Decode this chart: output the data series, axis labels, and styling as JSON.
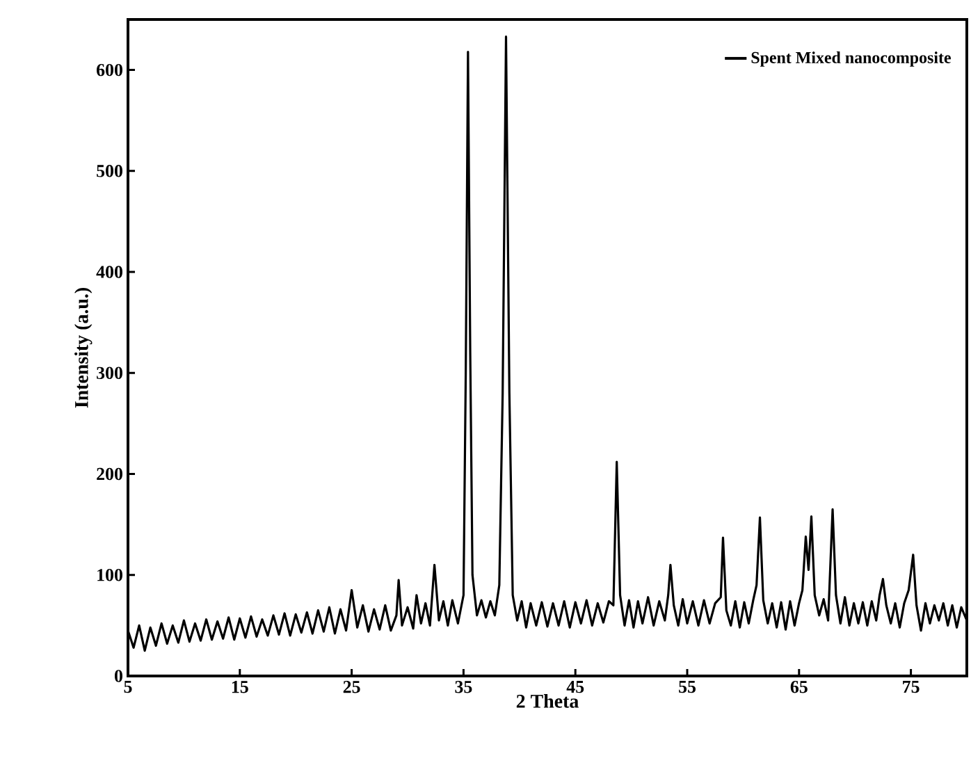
{
  "chart_data": {
    "type": "line",
    "xlabel": "2 Theta",
    "ylabel": "Intensity (a.u.)",
    "xlim": [
      5,
      80
    ],
    "ylim": [
      0,
      650
    ],
    "xticks": [
      5,
      15,
      25,
      35,
      45,
      55,
      65,
      75
    ],
    "yticks": [
      0,
      100,
      200,
      300,
      400,
      500,
      600
    ],
    "legend": "top right",
    "series": [
      {
        "name": "Spent Mixed nanocomposite",
        "color": "#000000",
        "x": [
          5.0,
          5.5,
          6.0,
          6.5,
          7.0,
          7.5,
          8.0,
          8.5,
          9.0,
          9.5,
          10.0,
          10.5,
          11.0,
          11.5,
          12.0,
          12.5,
          13.0,
          13.5,
          14.0,
          14.5,
          15.0,
          15.5,
          16.0,
          16.5,
          17.0,
          17.5,
          18.0,
          18.5,
          19.0,
          19.5,
          20.0,
          20.5,
          21.0,
          21.5,
          22.0,
          22.5,
          23.0,
          23.5,
          24.0,
          24.5,
          25.0,
          25.5,
          26.0,
          26.5,
          27.0,
          27.5,
          28.0,
          28.5,
          29.0,
          29.2,
          29.5,
          30.0,
          30.5,
          30.8,
          31.2,
          31.6,
          32.0,
          32.4,
          32.8,
          33.2,
          33.6,
          34.0,
          34.5,
          35.0,
          35.2,
          35.4,
          35.6,
          35.8,
          36.2,
          36.6,
          37.0,
          37.4,
          37.8,
          38.2,
          38.5,
          38.8,
          39.1,
          39.4,
          39.8,
          40.2,
          40.6,
          41.0,
          41.5,
          42.0,
          42.5,
          43.0,
          43.5,
          44.0,
          44.5,
          45.0,
          45.5,
          46.0,
          46.5,
          47.0,
          47.5,
          48.0,
          48.4,
          48.7,
          49.0,
          49.4,
          49.8,
          50.2,
          50.6,
          51.0,
          51.5,
          52.0,
          52.5,
          53.0,
          53.3,
          53.5,
          53.8,
          54.2,
          54.6,
          55.0,
          55.5,
          56.0,
          56.5,
          57.0,
          57.5,
          58.0,
          58.2,
          58.5,
          58.9,
          59.3,
          59.7,
          60.1,
          60.5,
          60.9,
          61.2,
          61.5,
          61.8,
          62.2,
          62.6,
          63.0,
          63.4,
          63.8,
          64.2,
          64.6,
          65.0,
          65.3,
          65.6,
          65.85,
          66.1,
          66.4,
          66.8,
          67.2,
          67.6,
          68.0,
          68.3,
          68.7,
          69.1,
          69.5,
          69.9,
          70.3,
          70.7,
          71.1,
          71.5,
          71.9,
          72.2,
          72.5,
          72.8,
          73.2,
          73.6,
          74.0,
          74.4,
          74.8,
          75.2,
          75.5,
          75.9,
          76.3,
          76.7,
          77.1,
          77.5,
          77.9,
          78.3,
          78.7,
          79.1,
          79.5,
          80.0
        ],
        "values": [
          45,
          28,
          50,
          25,
          48,
          30,
          52,
          32,
          50,
          33,
          55,
          34,
          52,
          35,
          56,
          36,
          54,
          37,
          58,
          36,
          57,
          38,
          59,
          39,
          56,
          40,
          60,
          41,
          62,
          40,
          61,
          43,
          63,
          42,
          65,
          44,
          68,
          42,
          66,
          45,
          85,
          48,
          70,
          44,
          66,
          46,
          70,
          45,
          60,
          95,
          50,
          68,
          47,
          80,
          52,
          72,
          50,
          110,
          55,
          74,
          50,
          75,
          52,
          80,
          300,
          618,
          320,
          100,
          60,
          75,
          58,
          74,
          60,
          90,
          280,
          633,
          280,
          80,
          55,
          74,
          48,
          72,
          50,
          73,
          49,
          72,
          50,
          74,
          48,
          73,
          52,
          75,
          50,
          72,
          53,
          74,
          70,
          212,
          80,
          50,
          75,
          48,
          74,
          52,
          78,
          50,
          74,
          55,
          80,
          110,
          70,
          50,
          76,
          52,
          74,
          50,
          75,
          52,
          72,
          78,
          137,
          65,
          50,
          74,
          48,
          73,
          52,
          75,
          90,
          157,
          75,
          52,
          72,
          48,
          73,
          46,
          74,
          50,
          72,
          85,
          138,
          105,
          158,
          80,
          60,
          76,
          55,
          165,
          80,
          52,
          78,
          50,
          72,
          52,
          73,
          50,
          74,
          55,
          80,
          96,
          70,
          52,
          72,
          48,
          72,
          85,
          120,
          70,
          45,
          72,
          52,
          70,
          55,
          72,
          50,
          70,
          48,
          68,
          55
        ]
      }
    ]
  }
}
